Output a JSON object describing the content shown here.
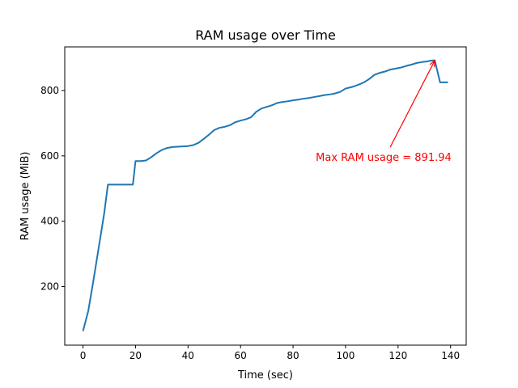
{
  "chart_data": {
    "type": "line",
    "title": "RAM usage over Time",
    "xlabel": "Time (sec)",
    "ylabel": "RAM usage (MiB)",
    "xlim": [
      -6.95,
      145.95
    ],
    "ylim": [
      20.7,
      933.5
    ],
    "xticks": [
      0,
      20,
      40,
      60,
      80,
      100,
      120,
      140
    ],
    "yticks": [
      200,
      400,
      600,
      800
    ],
    "grid": false,
    "series": [
      {
        "color": "#1f77b4",
        "x": [
          0,
          2,
          4,
          6,
          8,
          9.5,
          11,
          14,
          17,
          19,
          20,
          22,
          24,
          26,
          28,
          30,
          32,
          34,
          36,
          38,
          40,
          42,
          44,
          46,
          48,
          50,
          52,
          54,
          56,
          58,
          60,
          62,
          64,
          66,
          68,
          70,
          72,
          74,
          76,
          78,
          80,
          82,
          84,
          86,
          88,
          90,
          92,
          94,
          96,
          98,
          100,
          101,
          103,
          105,
          107,
          109,
          111,
          113,
          115,
          117,
          119,
          121,
          123,
          125,
          127,
          129,
          131,
          133,
          134,
          136,
          138,
          139
        ],
        "y": [
          64,
          125,
          220,
          320,
          420,
          512,
          512,
          512,
          512,
          512,
          584,
          584,
          586,
          596,
          608,
          618,
          624,
          627,
          628,
          629,
          630,
          633,
          640,
          652,
          665,
          679,
          686,
          689,
          694,
          703,
          708,
          712,
          718,
          735,
          745,
          750,
          755,
          762,
          765,
          767,
          770,
          772,
          775,
          777,
          780,
          783,
          786,
          788,
          791,
          796,
          806,
          808,
          812,
          818,
          825,
          835,
          848,
          854,
          858,
          864,
          867,
          870,
          875,
          879,
          884,
          887,
          889,
          892,
          891.94,
          825,
          825,
          825
        ]
      }
    ],
    "annotation": {
      "text": "Max RAM usage = 891.94",
      "color": "#ff0000",
      "point": [
        134,
        891.94
      ],
      "text_at": [
        114.5,
        594
      ]
    }
  }
}
